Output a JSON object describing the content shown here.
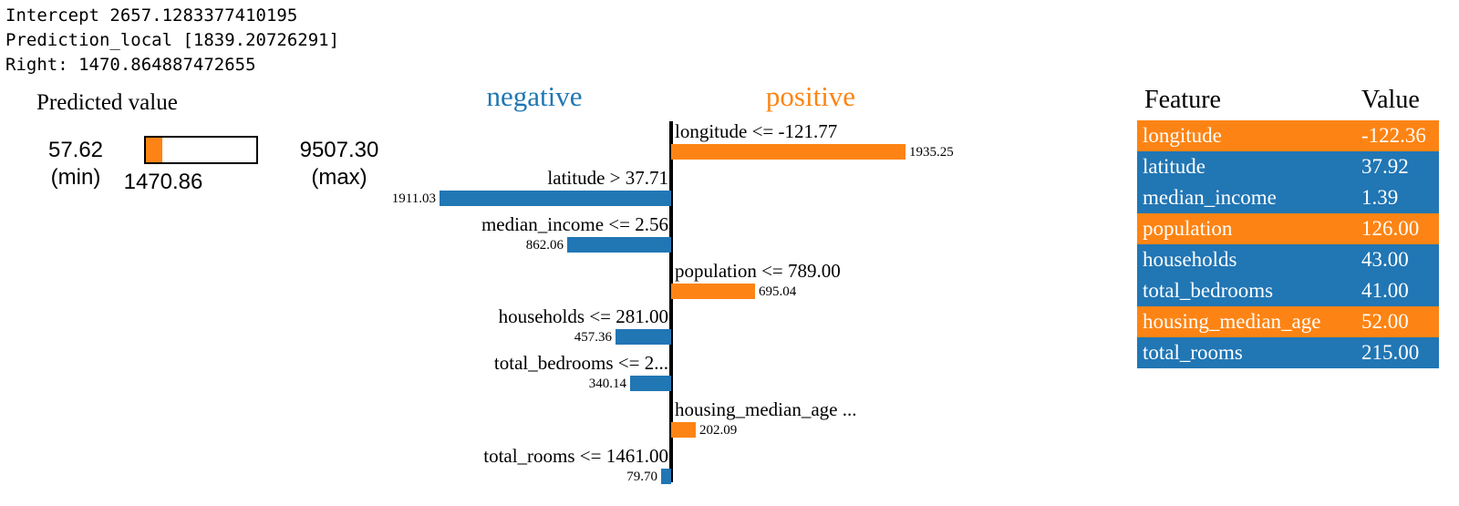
{
  "console": {
    "lines": [
      "Intercept 2657.1283377410195",
      "Prediction_local [1839.20726291]",
      "Right: 1470.864887472655"
    ]
  },
  "predicted_value": {
    "title": "Predicted value",
    "min_value": "57.62",
    "min_label": "(min)",
    "current_value": "1470.86",
    "max_value": "9507.30",
    "max_label": "(max)",
    "fill_color": "#fd8414"
  },
  "chart_data": {
    "type": "bar",
    "orientation": "horizontal-diverging",
    "negative_header": "negative",
    "positive_header": "positive",
    "colors": {
      "negative": "#2176b4",
      "positive": "#fd8414",
      "negative_text": "#1f77b4",
      "positive_text": "#fd8414"
    },
    "x_range_hint": [
      0,
      2000
    ],
    "bars": [
      {
        "label": "longitude <= -121.77",
        "value": 1935.25,
        "value_label": "1935.25",
        "side": "positive"
      },
      {
        "label": "latitude > 37.71",
        "value": 1911.03,
        "value_label": "1911.03",
        "side": "negative"
      },
      {
        "label": "median_income <= 2.56",
        "value": 862.06,
        "value_label": "862.06",
        "side": "negative"
      },
      {
        "label": "population <= 789.00",
        "value": 695.04,
        "value_label": "695.04",
        "side": "positive"
      },
      {
        "label": "households <= 281.00",
        "value": 457.36,
        "value_label": "457.36",
        "side": "negative"
      },
      {
        "label": "total_bedrooms <= 2...",
        "value": 340.14,
        "value_label": "340.14",
        "side": "negative"
      },
      {
        "label": "housing_median_age ...",
        "value": 202.09,
        "value_label": "202.09",
        "side": "positive"
      },
      {
        "label": "total_rooms <= 1461.00",
        "value": 79.7,
        "value_label": "79.70",
        "side": "negative"
      }
    ]
  },
  "feature_table": {
    "headers": [
      "Feature",
      "Value"
    ],
    "rows": [
      {
        "feature": "longitude",
        "value": "-122.36",
        "side": "positive"
      },
      {
        "feature": "latitude",
        "value": "37.92",
        "side": "negative"
      },
      {
        "feature": "median_income",
        "value": "1.39",
        "side": "negative"
      },
      {
        "feature": "population",
        "value": "126.00",
        "side": "positive"
      },
      {
        "feature": "households",
        "value": "43.00",
        "side": "negative"
      },
      {
        "feature": "total_bedrooms",
        "value": "41.00",
        "side": "negative"
      },
      {
        "feature": "housing_median_age",
        "value": "52.00",
        "side": "positive"
      },
      {
        "feature": "total_rooms",
        "value": "215.00",
        "side": "negative"
      }
    ]
  }
}
